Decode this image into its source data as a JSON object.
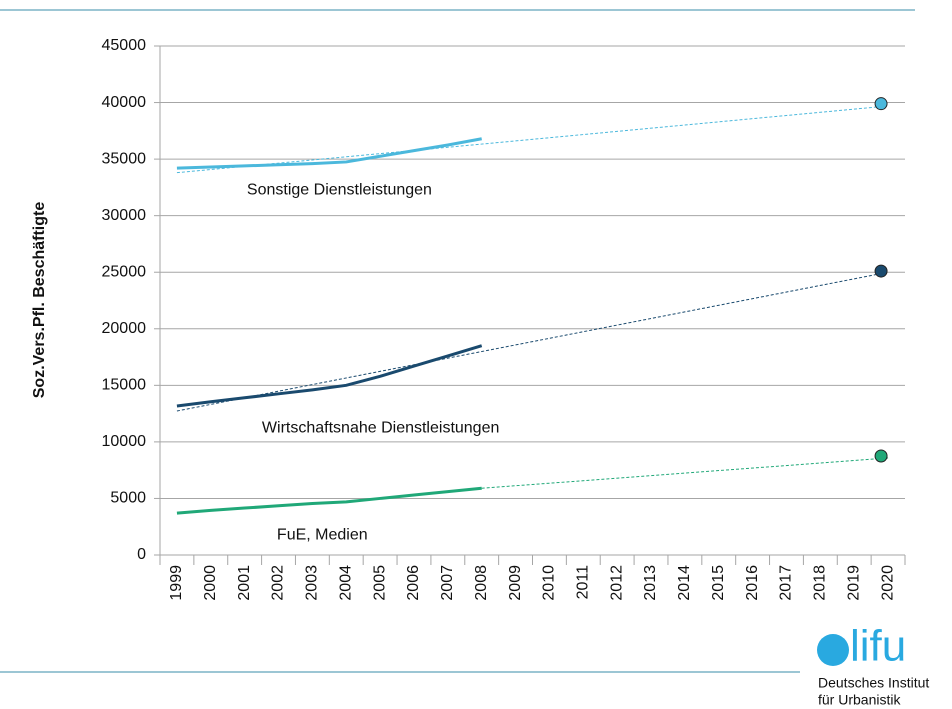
{
  "chart_data": {
    "type": "line",
    "ylabel": "Soz.Vers.Pfl. Beschäftigte",
    "categories": [
      "1999",
      "2000",
      "2001",
      "2002",
      "2003",
      "2004",
      "2005",
      "2006",
      "2007",
      "2008",
      "2009",
      "2010",
      "2011",
      "2012",
      "2013",
      "2014",
      "2015",
      "2016",
      "2017",
      "2018",
      "2019",
      "2020"
    ],
    "ylim": [
      0,
      45000
    ],
    "yticks": [
      0,
      5000,
      10000,
      15000,
      20000,
      25000,
      30000,
      35000,
      40000,
      45000
    ],
    "grid": true,
    "series": [
      {
        "name": "Sonstige Dienstleistungen",
        "color": "#4bb8dc",
        "values": [
          34200,
          34300,
          34400,
          34500,
          34600,
          34750,
          35250,
          35750,
          36250,
          36800,
          null,
          null,
          null,
          null,
          null,
          null,
          null,
          null,
          null,
          null,
          null,
          null
        ],
        "trend": {
          "x": [
            1999,
            2020
          ],
          "values": [
            33800,
            39700
          ]
        },
        "target": {
          "x": 2020,
          "value": 39900
        }
      },
      {
        "name": "Wirtschaftsnahe Dienstleistungen",
        "color": "#1a4a6e",
        "values": [
          13170,
          13550,
          13900,
          14250,
          14600,
          15000,
          15800,
          16700,
          17600,
          18500,
          null,
          null,
          null,
          null,
          null,
          null,
          null,
          null,
          null,
          null,
          null,
          null
        ],
        "trend": {
          "x": [
            1999,
            2020
          ],
          "values": [
            12730,
            25000
          ]
        },
        "target": {
          "x": 2020,
          "value": 25100
        }
      },
      {
        "name": "FuE, Medien",
        "color": "#20a878",
        "values": [
          3700,
          3950,
          4150,
          4350,
          4550,
          4700,
          5000,
          5300,
          5600,
          5900,
          null,
          null,
          null,
          null,
          null,
          null,
          null,
          null,
          null,
          null,
          null,
          null
        ],
        "trend": {
          "x": [
            2008,
            2020
          ],
          "values": [
            5900,
            8580
          ]
        },
        "target": {
          "x": 2020,
          "value": 8750
        }
      }
    ]
  },
  "logo": {
    "mark": "lifu",
    "line1": "Deutsches Institut",
    "line2": "für Urbanistik"
  }
}
